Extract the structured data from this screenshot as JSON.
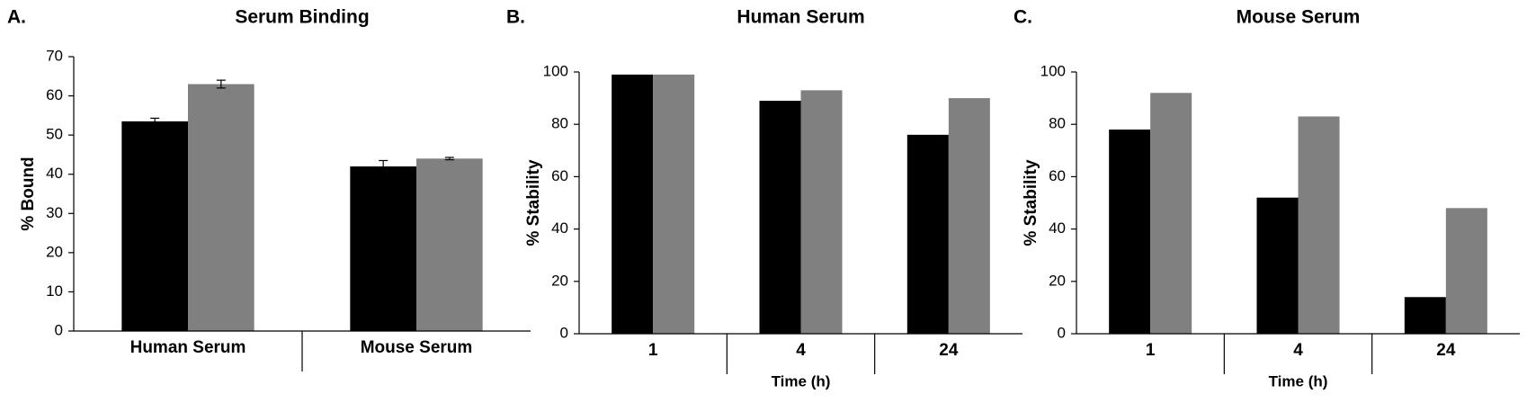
{
  "chart_data": [
    {
      "type": "bar",
      "panel_label": "A.",
      "title": "Serum Binding",
      "ylabel": "% Bound",
      "categories": [
        "Human Serum",
        "Mouse Serum"
      ],
      "series": [
        {
          "color": "#000000",
          "values": [
            53.5,
            42
          ],
          "errors": [
            0.8,
            1.5
          ]
        },
        {
          "color": "#808080",
          "values": [
            63,
            44
          ],
          "errors": [
            1,
            0.3
          ]
        }
      ],
      "ylim": [
        0,
        70
      ],
      "yticks": [
        0,
        10,
        20,
        30,
        40,
        50,
        60,
        70
      ],
      "grid": false
    },
    {
      "type": "bar",
      "panel_label": "B.",
      "title": "Human Serum",
      "ylabel": "% Stability",
      "xlabel": "Time (h)",
      "categories": [
        "1",
        "4",
        "24"
      ],
      "series": [
        {
          "color": "#000000",
          "values": [
            99,
            89,
            76
          ]
        },
        {
          "color": "#808080",
          "values": [
            99,
            93,
            90
          ]
        }
      ],
      "ylim": [
        0,
        100
      ],
      "yticks": [
        0,
        20,
        40,
        60,
        80,
        100
      ],
      "grid": false
    },
    {
      "type": "bar",
      "panel_label": "C.",
      "title": "Mouse Serum",
      "ylabel": "% Stability",
      "xlabel": "Time (h)",
      "categories": [
        "1",
        "4",
        "24"
      ],
      "series": [
        {
          "color": "#000000",
          "values": [
            78,
            52,
            14
          ]
        },
        {
          "color": "#808080",
          "values": [
            92,
            83,
            48
          ]
        }
      ],
      "ylim": [
        0,
        100
      ],
      "yticks": [
        0,
        20,
        40,
        60,
        80,
        100
      ],
      "grid": false
    }
  ]
}
